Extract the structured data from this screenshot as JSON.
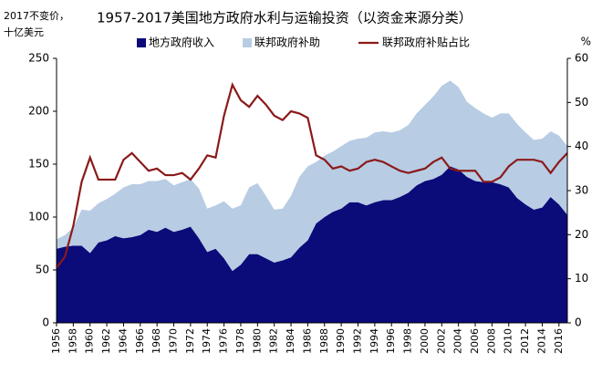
{
  "chart_data": {
    "type": "area",
    "stacked": true,
    "title": "1957-2017美国地方政府水利与运输投资（以资金来源分类）",
    "y_label": [
      "2017不变价，",
      "十亿美元"
    ],
    "y2_label": "%",
    "legend": "top",
    "categories": [
      "1956",
      null,
      "1958",
      null,
      "1960",
      null,
      "1962",
      null,
      "1964",
      null,
      "1966",
      null,
      "1968",
      null,
      "1970",
      null,
      "1972",
      null,
      "1974",
      null,
      "1976",
      null,
      "1978",
      null,
      "1980",
      null,
      "1982",
      null,
      "1984",
      null,
      "1986",
      null,
      "1988",
      null,
      "1990",
      null,
      "1992",
      null,
      "1994",
      null,
      "1996",
      null,
      "1998",
      null,
      "2000",
      null,
      "2002",
      null,
      "2004",
      null,
      "2006",
      null,
      "2008",
      null,
      "2010",
      null,
      "2012",
      null,
      "2014",
      null,
      "2016",
      null
    ],
    "series": [
      {
        "name": "地方政府收入",
        "color": "#0b0b7a",
        "type": "area",
        "values": [
          70,
          72,
          73,
          73,
          66,
          76,
          78,
          82,
          80,
          81,
          83,
          88,
          86,
          90,
          86,
          88,
          91,
          80,
          67,
          70,
          61,
          49,
          55,
          65,
          65,
          61,
          57,
          59,
          62,
          71,
          78,
          94,
          100,
          105,
          108,
          114,
          114,
          111,
          114,
          116,
          116,
          119,
          123,
          130,
          134,
          136,
          140,
          148,
          145,
          138,
          134,
          133,
          133,
          131,
          128,
          118,
          112,
          107,
          109,
          119,
          112,
          102
        ]
      },
      {
        "name": "联邦政府补助",
        "color": "#b8cce4",
        "type": "area",
        "values": [
          9,
          11,
          17,
          34,
          40,
          37,
          39,
          40,
          48,
          50,
          48,
          46,
          48,
          46,
          44,
          45,
          45,
          47,
          41,
          41,
          54,
          59,
          56,
          63,
          67,
          59,
          50,
          49,
          58,
          67,
          70,
          58,
          58,
          57,
          59,
          58,
          60,
          64,
          66,
          65,
          64,
          63,
          64,
          68,
          72,
          78,
          84,
          81,
          78,
          71,
          69,
          65,
          61,
          67,
          70,
          70,
          68,
          66,
          65,
          62,
          65,
          65
        ]
      },
      {
        "name": "联邦政府补贴占比",
        "color": "#8b1a1a",
        "type": "line",
        "axis": "y2",
        "values": [
          12.5,
          15,
          22,
          32,
          37.5,
          32.5,
          32.5,
          32.5,
          37,
          38.5,
          36.5,
          34.5,
          35,
          33.5,
          33.5,
          34,
          32.5,
          35,
          38,
          37.5,
          47,
          54,
          50.5,
          49,
          51.5,
          49.5,
          47,
          46,
          48,
          47.5,
          46.5,
          38,
          37,
          35,
          35.5,
          34.5,
          35,
          36.5,
          37,
          36.5,
          35.5,
          34.5,
          34,
          34.5,
          35,
          36.5,
          37.5,
          35,
          34.5,
          34.5,
          34.5,
          32,
          32,
          33,
          35.5,
          37,
          37,
          37,
          36.5,
          34,
          36.5,
          38.5
        ]
      }
    ],
    "ylim": [
      0,
      250
    ],
    "yticks": [
      0,
      50,
      100,
      150,
      200,
      250
    ],
    "y2lim": [
      0,
      60
    ],
    "y2ticks": [
      0,
      10,
      20,
      30,
      40,
      50,
      60
    ]
  }
}
